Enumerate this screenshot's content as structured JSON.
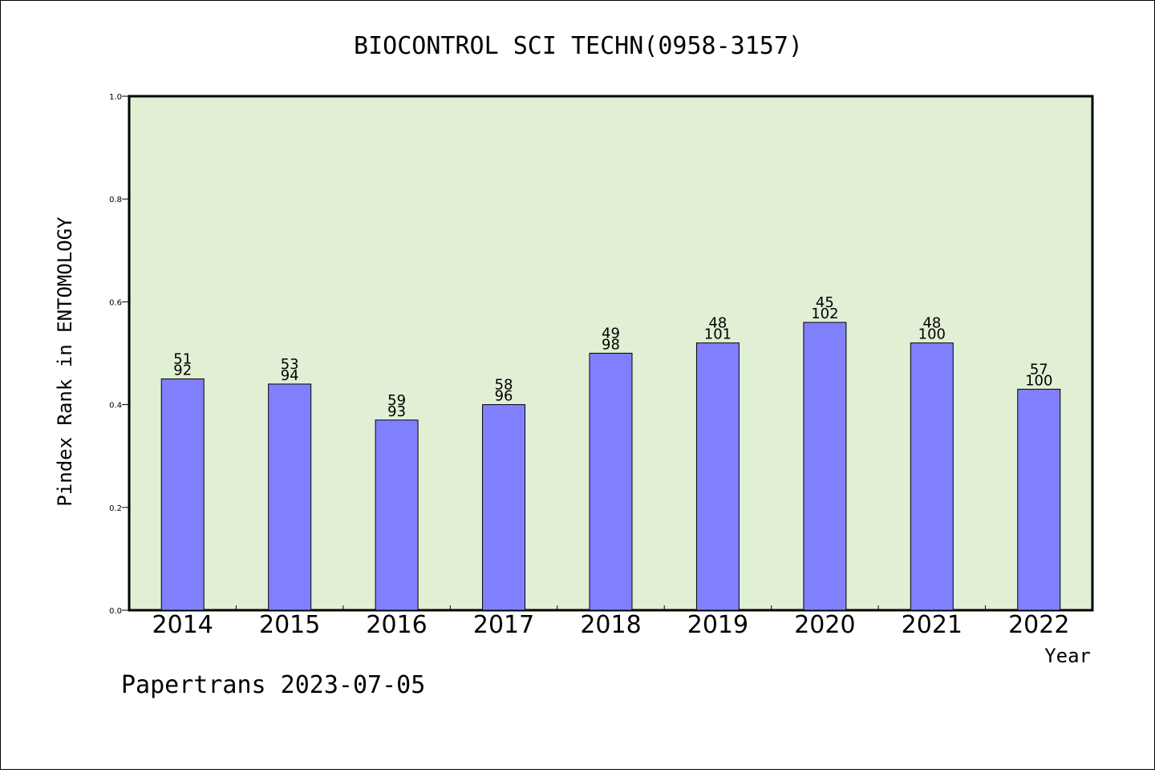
{
  "chart_data": {
    "type": "bar",
    "title": "BIOCONTROL SCI TECHN(0958-3157)",
    "xlabel": "Year",
    "ylabel": "Pindex Rank in ENTOMOLOGY",
    "ylim": [
      0.0,
      1.0
    ],
    "yticks": [
      "0.0",
      "0.2",
      "0.4",
      "0.6",
      "0.8",
      "1.0"
    ],
    "categories": [
      "2014",
      "2015",
      "2016",
      "2017",
      "2018",
      "2019",
      "2020",
      "2021",
      "2022"
    ],
    "values": [
      0.45,
      0.44,
      0.37,
      0.4,
      0.5,
      0.52,
      0.56,
      0.52,
      0.43
    ],
    "rank": [
      "51",
      "53",
      "59",
      "58",
      "49",
      "48",
      "45",
      "48",
      "57"
    ],
    "total": [
      "92",
      "94",
      "93",
      "96",
      "98",
      "101",
      "102",
      "100",
      "100"
    ],
    "grid": false,
    "colors": {
      "bar": "#8080ff",
      "plot_bg": "#e1efd5",
      "axis": "#000000"
    }
  },
  "footer": "Papertrans 2023-07-05"
}
